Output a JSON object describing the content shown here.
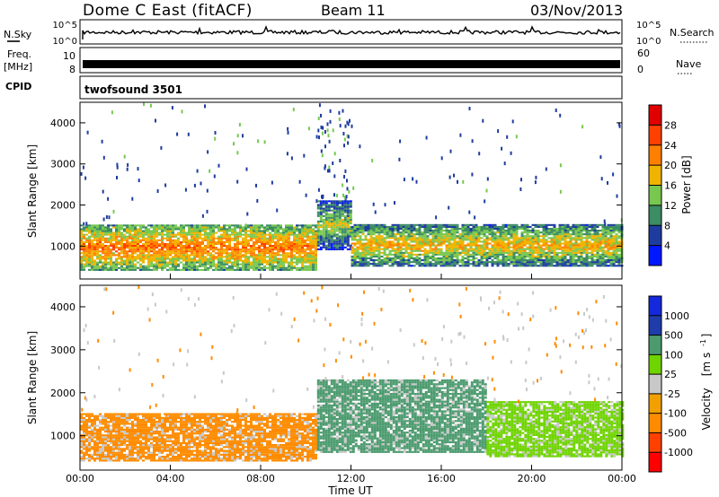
{
  "header": {
    "site": "Dome C East (fitACF)",
    "beam": "Beam 11",
    "date": "03/Nov/2013"
  },
  "meta_panels": {
    "nsky_label": "N.Sky",
    "nsky_ticks": [
      "10^5",
      "10^0"
    ],
    "nsearch_label": "N.Search",
    "freq_label_line1": "Freq.",
    "freq_label_line2": "[MHz]",
    "freq_ticks": [
      "10",
      "8"
    ],
    "nave_label": "Nave",
    "nave_ticks": [
      "60",
      "0"
    ],
    "cpid_label": "CPID",
    "cpid_value": "twofsound 3501"
  },
  "colors": {
    "power_scale": [
      "#0018ff",
      "#1e3ca0",
      "#3c8c64",
      "#78c850",
      "#f0b400",
      "#ff8000",
      "#ff4000",
      "#e00000"
    ],
    "velocity_scale": [
      "#ff0000",
      "#ff4000",
      "#ff8c00",
      "#f2a000",
      "#c8c8c8",
      "#6fd400",
      "#4b9b6e",
      "#1e3caa",
      "#1428dc"
    ]
  },
  "chart_data": [
    {
      "type": "heatmap",
      "panel": "power",
      "ylabel": "Slant Range [km]",
      "yticks": [
        1000,
        2000,
        3000,
        4000
      ],
      "ylim": [
        200,
        4500
      ],
      "xlim": [
        "00:00",
        "24:00"
      ],
      "colorbar": {
        "label": "Power [dB]",
        "ticks": [
          "4",
          "8",
          "12",
          "16",
          "20",
          "24",
          "28"
        ],
        "range": [
          0,
          32
        ]
      },
      "echo_bands": [
        {
          "time_start": "00:00",
          "time_end": "10:30",
          "range_min": 400,
          "range_max": 1500,
          "dominant_power": 24
        },
        {
          "time_start": "10:30",
          "time_end": "12:00",
          "range_min": 900,
          "range_max": 2100,
          "dominant_power": 16
        },
        {
          "time_start": "12:00",
          "time_end": "24:00",
          "range_min": 500,
          "range_max": 1500,
          "dominant_power": 20
        }
      ]
    },
    {
      "type": "heatmap",
      "panel": "velocity",
      "ylabel": "Slant Range [km]",
      "yticks": [
        1000,
        2000,
        3000,
        4000
      ],
      "ylim": [
        200,
        4500
      ],
      "xlim": [
        "00:00",
        "24:00"
      ],
      "xticks": [
        "00:00",
        "04:00",
        "08:00",
        "12:00",
        "16:00",
        "20:00",
        "00:00"
      ],
      "xlabel": "Time UT",
      "colorbar": {
        "label": "Velocity",
        "label_unit": "[m s",
        "label_exp": "-1",
        "label_close": "]",
        "ticks": [
          "-1000",
          "-500",
          "-100",
          "-25",
          "25",
          "100",
          "500",
          "1000"
        ]
      },
      "echo_bands": [
        {
          "time_start": "00:00",
          "time_end": "10:30",
          "range_min": 400,
          "range_max": 1500,
          "dominant_velocity": -200
        },
        {
          "time_start": "10:30",
          "time_end": "18:00",
          "range_min": 600,
          "range_max": 2300,
          "dominant_velocity": 150
        },
        {
          "time_start": "18:00",
          "time_end": "24:00",
          "range_min": 500,
          "range_max": 1800,
          "dominant_velocity": 50
        }
      ]
    }
  ]
}
